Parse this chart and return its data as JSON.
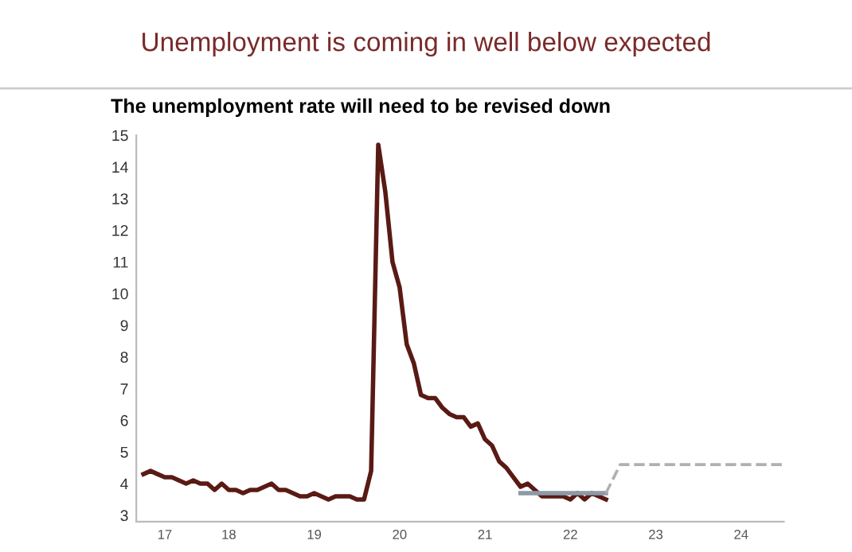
{
  "chart_data": {
    "type": "line",
    "title": "Unemployment is coming in well below expected",
    "subtitle": "The unemployment rate will need to be revised down",
    "series": [
      {
        "color": "#5a1a14",
        "line_style": "solid",
        "x": [
          "2017-07",
          "2017-08",
          "2017-09",
          "2017-10",
          "2017-11",
          "2017-12",
          "2018-01",
          "2018-02",
          "2018-03",
          "2018-04",
          "2018-05",
          "2018-06",
          "2018-07",
          "2018-08",
          "2018-09",
          "2018-10",
          "2018-11",
          "2018-12",
          "2019-01",
          "2019-02",
          "2019-03",
          "2019-04",
          "2019-05",
          "2019-06",
          "2019-07",
          "2019-08",
          "2019-09",
          "2019-10",
          "2019-11",
          "2019-12",
          "2020-01",
          "2020-02",
          "2020-03",
          "2020-04",
          "2020-05",
          "2020-06",
          "2020-07",
          "2020-08",
          "2020-09",
          "2020-10",
          "2020-11",
          "2020-12",
          "2021-01",
          "2021-02",
          "2021-03",
          "2021-04",
          "2021-05",
          "2021-06",
          "2021-07",
          "2021-08",
          "2021-09",
          "2021-10",
          "2021-11",
          "2021-12",
          "2022-01",
          "2022-02",
          "2022-03",
          "2022-04",
          "2022-05",
          "2022-06",
          "2022-07",
          "2022-08",
          "2022-09",
          "2022-10",
          "2022-11",
          "2022-12"
        ],
        "values": [
          4.3,
          4.4,
          4.3,
          4.2,
          4.2,
          4.1,
          4.0,
          4.1,
          4.0,
          4.0,
          3.8,
          4.0,
          3.8,
          3.8,
          3.7,
          3.8,
          3.8,
          3.9,
          4.0,
          3.8,
          3.8,
          3.7,
          3.6,
          3.6,
          3.7,
          3.6,
          3.5,
          3.6,
          3.6,
          3.6,
          3.5,
          3.5,
          4.4,
          14.7,
          13.2,
          11.0,
          10.2,
          8.4,
          7.8,
          6.8,
          6.7,
          6.7,
          6.4,
          6.2,
          6.1,
          6.1,
          5.8,
          5.9,
          5.4,
          5.2,
          4.7,
          4.5,
          4.2,
          3.9,
          4.0,
          3.8,
          3.6,
          3.6,
          3.6,
          3.6,
          3.5,
          3.7,
          3.5,
          3.7,
          3.6,
          3.5
        ]
      },
      {
        "color": "#8c9aa6",
        "line_style": "solid",
        "x": [
          "2021-12",
          "2022-12"
        ],
        "values": [
          3.7,
          3.7
        ]
      },
      {
        "color": "#b0b0b0",
        "line_style": "dashed",
        "x": [
          "2022-12",
          "2023-02",
          "2025-01"
        ],
        "values": [
          3.7,
          4.6,
          4.6
        ]
      }
    ],
    "xlim": [
      "2017-06",
      "2025-01"
    ],
    "xticks": [
      {
        "value": "2017-10",
        "label": "17"
      },
      {
        "value": "2018-07",
        "label": "18"
      },
      {
        "value": "2019-07",
        "label": "19"
      },
      {
        "value": "2020-07",
        "label": "20"
      },
      {
        "value": "2021-07",
        "label": "21"
      },
      {
        "value": "2022-07",
        "label": "22"
      },
      {
        "value": "2023-07",
        "label": "23"
      },
      {
        "value": "2024-07",
        "label": "24"
      }
    ],
    "ylim": [
      2.8,
      15
    ],
    "yticks": [
      3,
      4,
      5,
      6,
      7,
      8,
      9,
      10,
      11,
      12,
      13,
      14,
      15
    ],
    "grid": false,
    "legend": false
  }
}
